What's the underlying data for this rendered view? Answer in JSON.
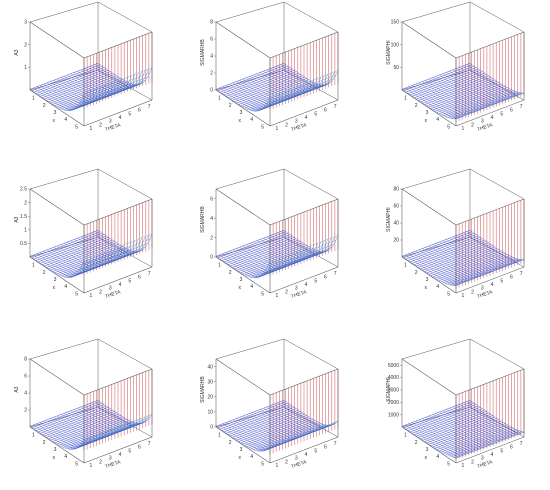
{
  "chart_data": [
    {
      "type": "surface",
      "xlabel": "x",
      "ylabel": "THETA",
      "zlabel": "A3",
      "xticks": [
        "1",
        "2",
        "3",
        "4",
        "5"
      ],
      "yticks": [
        "1",
        "2",
        "3",
        "4",
        "5",
        "6",
        "7"
      ],
      "zticks": [
        "1",
        "2",
        "3"
      ],
      "zmax": 3,
      "surface_max": 1.4
    },
    {
      "type": "surface",
      "xlabel": "x",
      "ylabel": "THETA",
      "zlabel": "SIGMARHB",
      "xticks": [
        "1",
        "2",
        "3",
        "4",
        "5"
      ],
      "yticks": [
        "1",
        "2",
        "3",
        "4",
        "5",
        "6",
        "7"
      ],
      "zticks": [
        "0",
        "2",
        "4",
        "6",
        "8"
      ],
      "zmax": 8,
      "surface_max": 3.4
    },
    {
      "type": "surface",
      "xlabel": "x",
      "ylabel": "THETA",
      "zlabel": "SIGMAPHI",
      "xticks": [
        "1",
        "2",
        "3",
        "4",
        "5"
      ],
      "yticks": [
        "1",
        "2",
        "3",
        "4",
        "5",
        "6",
        "7"
      ],
      "zticks": [
        "50",
        "100",
        "150"
      ],
      "zmax": 150,
      "surface_max": 14
    },
    {
      "type": "surface",
      "xlabel": "x",
      "ylabel": "THETA",
      "zlabel": "A3",
      "xticks": [
        "1",
        "2",
        "3",
        "4",
        "5"
      ],
      "yticks": [
        "1",
        "2",
        "3",
        "4",
        "5",
        "6",
        "7"
      ],
      "zticks": [
        "0.5",
        "1",
        "1.5",
        "2",
        "2.5"
      ],
      "zmax": 2.5,
      "surface_max": 1.2
    },
    {
      "type": "surface",
      "xlabel": "x",
      "ylabel": "THETA",
      "zlabel": "SIGMARHB",
      "xticks": [
        "1",
        "2",
        "3",
        "4",
        "5"
      ],
      "yticks": [
        "1",
        "2",
        "3",
        "4",
        "5",
        "6",
        "7"
      ],
      "zticks": [
        "0",
        "2",
        "4",
        "6"
      ],
      "zmax": 7,
      "surface_max": 3.2
    },
    {
      "type": "surface",
      "xlabel": "x",
      "ylabel": "THETA",
      "zlabel": "SIGMAPHI",
      "xticks": [
        "1",
        "2",
        "3",
        "4",
        "5"
      ],
      "yticks": [
        "1",
        "2",
        "3",
        "4",
        "5",
        "6",
        "7"
      ],
      "zticks": [
        "20",
        "40",
        "60",
        "80"
      ],
      "zmax": 80,
      "surface_max": 8
    },
    {
      "type": "surface",
      "xlabel": "x",
      "ylabel": "THETA",
      "zlabel": "A3",
      "xticks": [
        "1",
        "2",
        "3",
        "4",
        "5"
      ],
      "yticks": [
        "1",
        "2",
        "3",
        "4",
        "5",
        "6",
        "7"
      ],
      "zticks": [
        "2",
        "4",
        "6",
        "8"
      ],
      "zmax": 8,
      "surface_max": 2.6
    },
    {
      "type": "surface",
      "xlabel": "x",
      "ylabel": "THETA",
      "zlabel": "SIGMARHB",
      "xticks": [
        "1",
        "2",
        "3",
        "4",
        "5"
      ],
      "yticks": [
        "1",
        "2",
        "3",
        "4",
        "5",
        "6",
        "7"
      ],
      "zticks": [
        "0",
        "10",
        "20",
        "30",
        "40"
      ],
      "zmax": 45,
      "surface_max": 10
    },
    {
      "type": "surface",
      "xlabel": "x",
      "ylabel": "THETA",
      "zlabel": "SIGMAPHI",
      "xticks": [
        "1",
        "2",
        "3",
        "4",
        "5"
      ],
      "yticks": [
        "1",
        "2",
        "3",
        "4",
        "5",
        "6",
        "7"
      ],
      "zticks": [
        "1000",
        "2000",
        "3000",
        "4000",
        "5000"
      ],
      "zmax": 5500,
      "surface_max": 350
    }
  ],
  "colors": {
    "box": "#555555",
    "wall": "#c83c3c",
    "mid": "#46b4d2",
    "surface": "#3c46c8",
    "grid_light": "#9ac8ff"
  }
}
